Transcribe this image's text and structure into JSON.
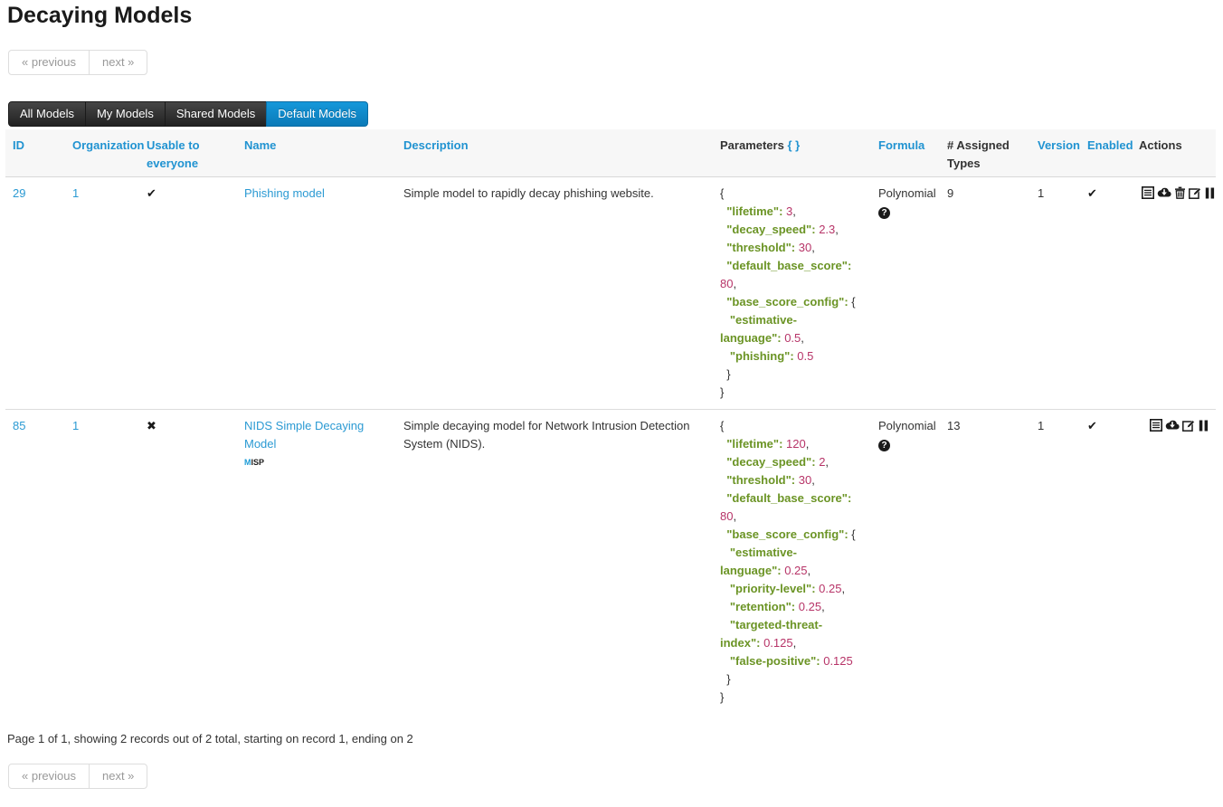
{
  "page": {
    "title": "Decaying Models"
  },
  "pagination": {
    "previous_label": "« previous",
    "next_label": "next »"
  },
  "tabs": [
    {
      "label": "All Models",
      "active": false
    },
    {
      "label": "My Models",
      "active": false
    },
    {
      "label": "Shared Models",
      "active": false
    },
    {
      "label": "Default Models",
      "active": true
    }
  ],
  "glyphs": {
    "check": "✔",
    "cross": "✖",
    "question": "?"
  },
  "colors": {
    "link_blue": "#2b9ad3",
    "tab_active_blue": "#0f8ccc",
    "tab_dark": "#2f2f2f",
    "json_key_green": "#6b9425",
    "json_value_magenta": "#b73468",
    "header_bg": "#f7f7f7"
  },
  "table": {
    "headers": [
      {
        "label": "ID",
        "link": true
      },
      {
        "label": "Organization",
        "link": true
      },
      {
        "label": "Usable to everyone",
        "link": true
      },
      {
        "label": "Name",
        "link": true
      },
      {
        "label": "Description",
        "link": true
      },
      {
        "label": "Parameters",
        "link": false,
        "suffix": "{ }"
      },
      {
        "label": "Formula",
        "link": true
      },
      {
        "label": "# Assigned Types",
        "link": false
      },
      {
        "label": "Version",
        "link": true
      },
      {
        "label": "Enabled",
        "link": true
      },
      {
        "label": "Actions",
        "link": false
      }
    ],
    "rows": [
      {
        "id": "29",
        "org": "1",
        "usable": "check",
        "name": "Phishing model",
        "badge": "",
        "description": "Simple model to rapidly decay phishing website.",
        "formula": "Polynomial",
        "assigned_types": "9",
        "version": "1",
        "enabled": "check",
        "actions": [
          "table-list-icon",
          "cloud-download-icon",
          "trash-icon",
          "edit-icon",
          "pause-icon"
        ],
        "param_lines": [
          [
            [
              "p",
              "{"
            ]
          ],
          [
            [
              "p",
              "  "
            ],
            [
              "k",
              "\"lifetime\":"
            ],
            [
              "p",
              " "
            ],
            [
              "v",
              "3"
            ],
            [
              "p",
              ","
            ]
          ],
          [
            [
              "p",
              "  "
            ],
            [
              "k",
              "\"decay_speed\":"
            ],
            [
              "p",
              " "
            ],
            [
              "v",
              "2.3"
            ],
            [
              "p",
              ","
            ]
          ],
          [
            [
              "p",
              "  "
            ],
            [
              "k",
              "\"threshold\":"
            ],
            [
              "p",
              " "
            ],
            [
              "v",
              "30"
            ],
            [
              "p",
              ","
            ]
          ],
          [
            [
              "p",
              "  "
            ],
            [
              "k",
              "\"default_base_score\":"
            ],
            [
              "p",
              " "
            ],
            [
              "v",
              "80"
            ],
            [
              "p",
              ","
            ]
          ],
          [
            [
              "p",
              "  "
            ],
            [
              "k",
              "\"base_score_config\":"
            ],
            [
              "p",
              " {"
            ]
          ],
          [
            [
              "p",
              "   "
            ],
            [
              "k",
              "\"estimative-"
            ]
          ],
          [
            [
              "k",
              "language\":"
            ],
            [
              "p",
              " "
            ],
            [
              "v",
              "0.5"
            ],
            [
              "p",
              ","
            ]
          ],
          [
            [
              "p",
              "   "
            ],
            [
              "k",
              "\"phishing\":"
            ],
            [
              "p",
              " "
            ],
            [
              "v",
              "0.5"
            ]
          ],
          [
            [
              "p",
              "  }"
            ]
          ],
          [
            [
              "p",
              "}"
            ]
          ]
        ]
      },
      {
        "id": "85",
        "org": "1",
        "usable": "cross",
        "name": "NIDS Simple Decaying Model",
        "badge": "MISP",
        "description": "Simple decaying model for Network Intrusion Detection System (NIDS).",
        "formula": "Polynomial",
        "assigned_types": "13",
        "version": "1",
        "enabled": "check",
        "actions": [
          "table-list-icon",
          "cloud-download-icon",
          "edit-icon",
          "pause-icon"
        ],
        "param_lines": [
          [
            [
              "p",
              "{"
            ]
          ],
          [
            [
              "p",
              "  "
            ],
            [
              "k",
              "\"lifetime\":"
            ],
            [
              "p",
              " "
            ],
            [
              "v",
              "120"
            ],
            [
              "p",
              ","
            ]
          ],
          [
            [
              "p",
              "  "
            ],
            [
              "k",
              "\"decay_speed\":"
            ],
            [
              "p",
              " "
            ],
            [
              "v",
              "2"
            ],
            [
              "p",
              ","
            ]
          ],
          [
            [
              "p",
              "  "
            ],
            [
              "k",
              "\"threshold\":"
            ],
            [
              "p",
              " "
            ],
            [
              "v",
              "30"
            ],
            [
              "p",
              ","
            ]
          ],
          [
            [
              "p",
              "  "
            ],
            [
              "k",
              "\"default_base_score\":"
            ],
            [
              "p",
              " "
            ],
            [
              "v",
              "80"
            ],
            [
              "p",
              ","
            ]
          ],
          [
            [
              "p",
              "  "
            ],
            [
              "k",
              "\"base_score_config\":"
            ],
            [
              "p",
              " {"
            ]
          ],
          [
            [
              "p",
              "   "
            ],
            [
              "k",
              "\"estimative-"
            ]
          ],
          [
            [
              "k",
              "language\":"
            ],
            [
              "p",
              " "
            ],
            [
              "v",
              "0.25"
            ],
            [
              "p",
              ","
            ]
          ],
          [
            [
              "p",
              "   "
            ],
            [
              "k",
              "\"priority-level\":"
            ],
            [
              "p",
              " "
            ],
            [
              "v",
              "0.25"
            ],
            [
              "p",
              ","
            ]
          ],
          [
            [
              "p",
              "   "
            ],
            [
              "k",
              "\"retention\":"
            ],
            [
              "p",
              " "
            ],
            [
              "v",
              "0.25"
            ],
            [
              "p",
              ","
            ]
          ],
          [
            [
              "p",
              "   "
            ],
            [
              "k",
              "\"targeted-threat-"
            ]
          ],
          [
            [
              "k",
              "index\":"
            ],
            [
              "p",
              " "
            ],
            [
              "v",
              "0.125"
            ],
            [
              "p",
              ","
            ]
          ],
          [
            [
              "p",
              "   "
            ],
            [
              "k",
              "\"false-positive\":"
            ],
            [
              "p",
              " "
            ],
            [
              "v",
              "0.125"
            ]
          ],
          [
            [
              "p",
              "  }"
            ]
          ],
          [
            [
              "p",
              "}"
            ]
          ]
        ]
      }
    ]
  },
  "footer": {
    "summary": "Page 1 of 1, showing 2 records out of 2 total, starting on record 1, ending on 2"
  }
}
